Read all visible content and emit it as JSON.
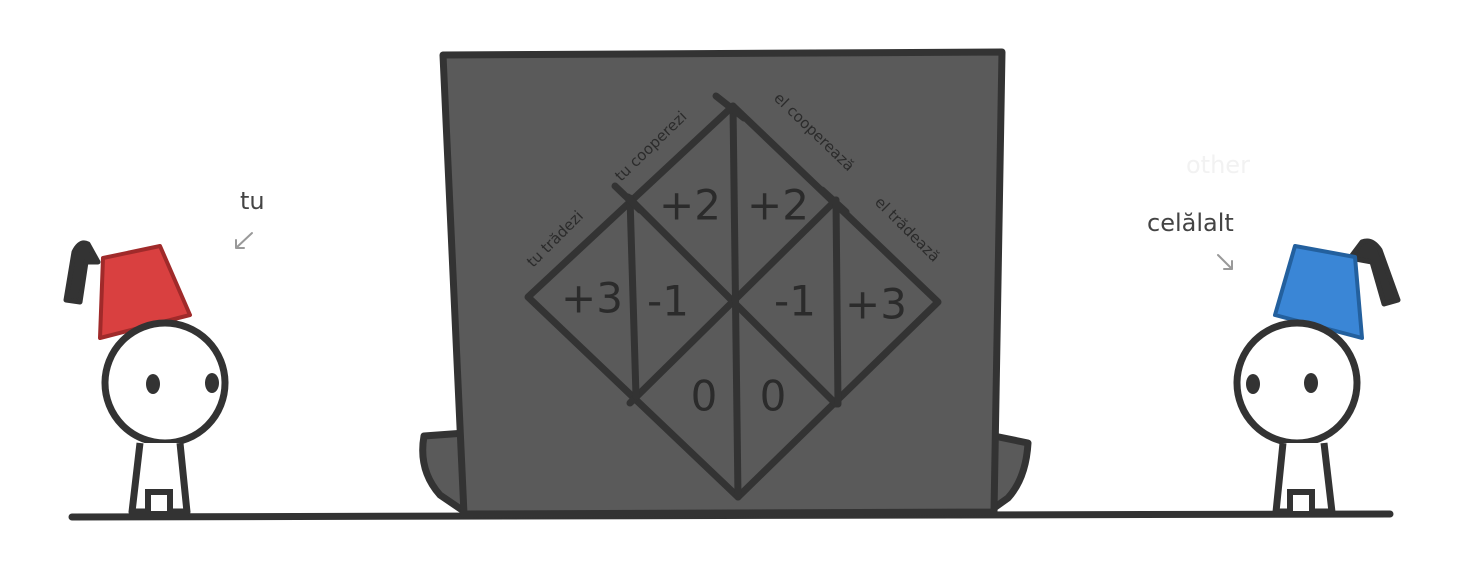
{
  "scene": {
    "background": "#ffffff",
    "ground_color": "#333333"
  },
  "characters": {
    "you": {
      "label": "tu",
      "hat_color": "#d94040",
      "hat_icon": "fez-hat-icon"
    },
    "other": {
      "label": "celălalt",
      "ghost_label": "other",
      "hat_color": "#3a86d6",
      "hat_icon": "fez-hat-icon"
    }
  },
  "machine": {
    "body_color": "#5a5a5a",
    "edge_labels": {
      "you_defect": "tu trădezi",
      "you_cooperate": "tu cooperezi",
      "they_cooperate": "el cooperează",
      "they_defect": "el trădează"
    },
    "payoffs": {
      "cc_you": "+2",
      "cc_them": "+2",
      "you_defect_they_coop_you": "+3",
      "you_defect_they_coop_them": "-1",
      "you_coop_they_defect_you": "-1",
      "you_coop_they_defect_them": "+3",
      "dd_you": "0",
      "dd_them": "0"
    }
  }
}
